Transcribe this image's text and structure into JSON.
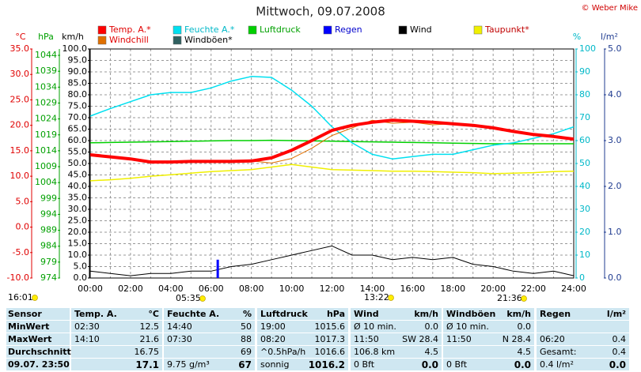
{
  "chart_data": {
    "type": "line",
    "title": "Mittwoch, 09.07.2008",
    "credit": "© Weber Mike",
    "x": [
      0,
      1,
      2,
      3,
      4,
      5,
      6,
      7,
      8,
      9,
      10,
      11,
      12,
      13,
      14,
      15,
      16,
      17,
      18,
      19,
      20,
      21,
      22,
      23,
      24
    ],
    "xlim": [
      0,
      24
    ],
    "xticks": [
      {
        "value": 0,
        "label": "00:00"
      },
      {
        "value": 2,
        "label": "02:00"
      },
      {
        "value": 4,
        "label": "04:00"
      },
      {
        "value": 6,
        "label": "06:00"
      },
      {
        "value": 8,
        "label": "08:00"
      },
      {
        "value": 10,
        "label": "10:00"
      },
      {
        "value": 12,
        "label": "12:00"
      },
      {
        "value": 14,
        "label": "14:00"
      },
      {
        "value": 16,
        "label": "16:00"
      },
      {
        "value": 18,
        "label": "18:00"
      },
      {
        "value": 20,
        "label": "20:00"
      },
      {
        "value": 22,
        "label": "22:00"
      },
      {
        "value": 24,
        "label": "24:00"
      }
    ],
    "grid": true,
    "axes": [
      {
        "label": "°C",
        "color": "#e00000",
        "side": "left",
        "ylim": [
          -10,
          35
        ],
        "yticks": [
          {
            "value": 35,
            "label": "35.0"
          },
          {
            "value": 30,
            "label": "30.0"
          },
          {
            "value": 25,
            "label": "25.0"
          },
          {
            "value": 20,
            "label": "20.0"
          },
          {
            "value": 15,
            "label": "15.0"
          },
          {
            "value": 10,
            "label": "10.0"
          },
          {
            "value": 5,
            "label": "5.0"
          },
          {
            "value": 0,
            "label": "0.0"
          },
          {
            "value": -5,
            "label": "-5.0"
          },
          {
            "value": -10,
            "label": "-10.0"
          }
        ]
      },
      {
        "label": "hPa",
        "color": "#00a000",
        "side": "left",
        "ylim": [
          974,
          1046
        ],
        "yticks": [
          1044,
          1039,
          1034,
          1029,
          1024,
          1019,
          1014,
          1009,
          1004,
          999,
          994,
          989,
          984,
          979,
          974
        ]
      },
      {
        "label": "km/h",
        "color": "#000000",
        "side": "left",
        "ylim": [
          0,
          100
        ],
        "yticks": [
          {
            "value": 100,
            "label": "100.0"
          },
          {
            "value": 95,
            "label": "95.0"
          },
          {
            "value": 90,
            "label": "90.0"
          },
          {
            "value": 85,
            "label": "85.0"
          },
          {
            "value": 80,
            "label": "80.0"
          },
          {
            "value": 75,
            "label": "75.0"
          },
          {
            "value": 70,
            "label": "70.0"
          },
          {
            "value": 65,
            "label": "65.0"
          },
          {
            "value": 60,
            "label": "60.0"
          },
          {
            "value": 55,
            "label": "55.0"
          },
          {
            "value": 50,
            "label": "50.0"
          },
          {
            "value": 45,
            "label": "45.0"
          },
          {
            "value": 40,
            "label": "40.0"
          },
          {
            "value": 35,
            "label": "35.0"
          },
          {
            "value": 30,
            "label": "30.0"
          },
          {
            "value": 25,
            "label": "25.0"
          },
          {
            "value": 20,
            "label": "20.0"
          },
          {
            "value": 15,
            "label": "15.0"
          },
          {
            "value": 10,
            "label": "10.0"
          },
          {
            "value": 5,
            "label": "5.0"
          },
          {
            "value": 0,
            "label": "0.0"
          }
        ]
      },
      {
        "label": "%",
        "color": "#00b8c8",
        "side": "right",
        "ylim": [
          0,
          100
        ],
        "yticks": [
          100,
          90,
          80,
          70,
          60,
          50,
          40,
          30,
          20,
          10,
          0
        ]
      },
      {
        "label": "l/m²",
        "color": "#203c90",
        "side": "right",
        "ylim": [
          0,
          5
        ],
        "yticks": [
          {
            "value": 5,
            "label": "5.0"
          },
          {
            "value": 4,
            "label": "4.0"
          },
          {
            "value": 3,
            "label": "3.0"
          },
          {
            "value": 2,
            "label": "2.0"
          },
          {
            "value": 1,
            "label": "1.0"
          },
          {
            "value": 0,
            "label": "0.0"
          }
        ]
      }
    ],
    "series": [
      {
        "name": "Temp. A.*",
        "color": "#ff0000",
        "axis": 0,
        "width": 4,
        "values": [
          14.2,
          13.8,
          13.4,
          12.8,
          12.8,
          12.9,
          12.9,
          12.9,
          13.0,
          13.6,
          15.1,
          17.0,
          19.0,
          20.0,
          20.6,
          21.0,
          20.8,
          20.6,
          20.3,
          20.0,
          19.5,
          18.8,
          18.2,
          17.8,
          17.3
        ]
      },
      {
        "name": "Feuchte A.*",
        "color": "#00e0f0",
        "axis": 3,
        "width": 1.5,
        "values": [
          70.7,
          74,
          77,
          80,
          81,
          81,
          83,
          86,
          88,
          87.6,
          82,
          75,
          66,
          59,
          54,
          52,
          53,
          54,
          54,
          56,
          58,
          59,
          61,
          63,
          66
        ]
      },
      {
        "name": "Luftdruck",
        "color": "#00d000",
        "axis": 1,
        "width": 1.5,
        "values": [
          1016.5,
          1016.6,
          1016.7,
          1016.8,
          1016.9,
          1017.0,
          1017.1,
          1017.2,
          1017.2,
          1017.3,
          1017.2,
          1017.1,
          1017.0,
          1016.9,
          1016.8,
          1016.7,
          1016.6,
          1016.5,
          1016.4,
          1016.3,
          1016.2,
          1016.2,
          1016.2,
          1016.2,
          1016.2
        ]
      },
      {
        "name": "Regen",
        "color": "#0000ff",
        "axis": 4,
        "type": "bar",
        "x": [
          6.33
        ],
        "values": [
          0.4
        ]
      },
      {
        "name": "Wind",
        "color": "#000000",
        "axis": 2,
        "width": 1,
        "values": [
          3,
          2,
          1,
          2,
          2,
          3,
          3,
          5,
          6,
          8,
          10,
          12,
          14,
          10,
          10,
          8,
          9,
          8,
          9,
          6,
          5,
          3,
          2,
          3,
          1
        ]
      },
      {
        "name": "Taupunkt*",
        "color": "#f0f000",
        "axis": 0,
        "width": 1.5,
        "values": [
          9.1,
          9.3,
          9.6,
          10.0,
          10.3,
          10.6,
          10.9,
          11.1,
          11.3,
          11.8,
          12.3,
          11.8,
          11.3,
          11.2,
          11.1,
          11.0,
          11.0,
          10.9,
          10.8,
          10.7,
          10.5,
          10.6,
          10.7,
          10.9,
          11.0
        ]
      },
      {
        "name": "Windchill",
        "color": "#e07000",
        "axis": 0,
        "width": 1,
        "values": [
          14.2,
          13.8,
          13.4,
          12.8,
          12.8,
          12.9,
          12.9,
          12.9,
          13.0,
          12.6,
          13.5,
          15.5,
          18.0,
          19.5,
          21.0,
          20.4,
          20.6,
          20.1,
          20.3,
          20.0,
          19.5,
          18.8,
          18.2,
          17.8,
          17.3
        ]
      },
      {
        "name": "Windböen*",
        "color": "#306060",
        "axis": 2,
        "width": 1,
        "values": [
          null,
          null,
          null,
          null,
          null,
          null,
          null,
          null,
          null,
          null,
          null,
          null,
          null,
          null,
          null,
          null,
          null,
          null,
          null,
          null,
          null,
          null,
          null,
          null,
          null
        ]
      }
    ],
    "markers": [
      "16:01",
      "05:35",
      "13:22",
      "21:36"
    ]
  },
  "table": {
    "header": [
      "Sensor",
      "Temp. A.",
      "°C",
      "Feuchte A.",
      "%",
      "Luftdruck",
      "hPa",
      "Wind",
      "km/h",
      "Windböen",
      "km/h",
      "Regen",
      "l/m²"
    ],
    "rows": [
      [
        "MinWert",
        "02:30",
        "12.5",
        "14:40",
        "50",
        "19:00",
        "1015.6",
        "Ø 10 min.",
        "0.0",
        "Ø 10 min.",
        "0.0",
        null,
        null
      ],
      [
        "MaxWert",
        "14:10",
        "21.6",
        "07:30",
        "88",
        "08:20",
        "1017.3",
        "11:50",
        "SW 28.4",
        "11:50",
        "N 28.4",
        "06:20",
        "0.4"
      ],
      [
        "Durchschnitt",
        null,
        "16.75",
        null,
        "69",
        "^0.5hPa/h",
        "1016.6",
        "106.8 km",
        "4.5",
        null,
        "4.5",
        "Gesamt:",
        "0.4"
      ],
      [
        "09.07. 23:50",
        null,
        "17.1",
        "9.75 g/m³",
        "67",
        "sonnig",
        "1016.2",
        "0 Bft",
        "0.0",
        "0 Bft",
        "0.0",
        "0.4 l/m²",
        "0.0"
      ]
    ]
  }
}
